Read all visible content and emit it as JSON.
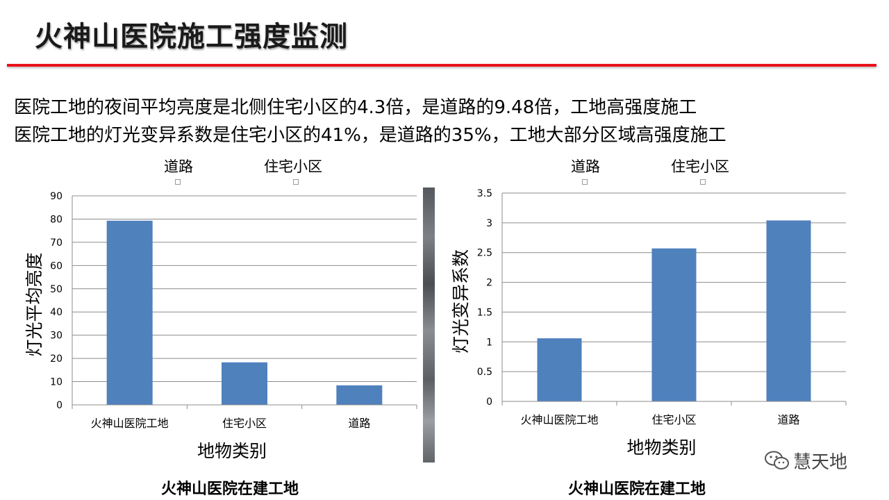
{
  "slide": {
    "title": "火神山医院施工强度监测",
    "summary_lines": [
      "医院工地的夜间平均亮度是北侧住宅小区的4.3倍，是道路的9.48倍，工地高强度施工",
      "医院工地的灯光变异系数是住宅小区的41%，是道路的35%，工地大部分区域高强度施工"
    ],
    "accent_color": "#e8141b",
    "captions": [
      "火神山医院在建工地",
      "火神山医院在建工地"
    ],
    "watermark": "慧天地",
    "watermark_icon": "wechat-icon"
  },
  "legends": [
    [
      "道路",
      "住宅小区"
    ],
    [
      "道路",
      "住宅小区"
    ]
  ],
  "chart_data": [
    {
      "type": "bar",
      "categories": [
        "火神山医院工地",
        "住宅小区",
        "道路"
      ],
      "values": [
        79.3,
        18.3,
        8.4
      ],
      "xlabel": "地物类别",
      "ylabel": "灯光平均亮度",
      "ylim": [
        0,
        90
      ],
      "yticks": [
        0,
        10,
        20,
        30,
        40,
        50,
        60,
        70,
        80,
        90
      ],
      "grid": true,
      "bar_color": "#4f81bd"
    },
    {
      "type": "bar",
      "categories": [
        "火神山医院工地",
        "住宅小区",
        "道路"
      ],
      "values": [
        1.06,
        2.57,
        3.04
      ],
      "xlabel": "地物类别",
      "ylabel": "灯光变异系数",
      "ylim": [
        0,
        3.5
      ],
      "yticks": [
        0,
        0.5,
        1,
        1.5,
        2,
        2.5,
        3,
        3.5
      ],
      "grid": true,
      "bar_color": "#4f81bd"
    }
  ]
}
